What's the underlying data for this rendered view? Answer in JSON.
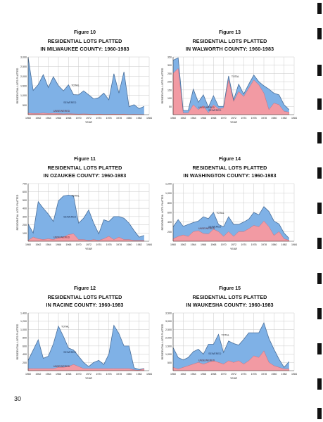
{
  "page_number": "30",
  "binder_tabs": [
    4,
    40,
    92,
    140,
    188,
    238,
    288,
    338,
    388,
    438,
    488,
    538,
    580
  ],
  "colors": {
    "sewered": "#7fb1e6",
    "unsewered": "#f29aa3",
    "grid": "#c9c9c9",
    "line": "#4a6f9a"
  },
  "charts": [
    {
      "figure": "Figure 10",
      "title_line1": "RESIDENTIAL LOTS PLATTED",
      "title_line2": "IN MILWAUKEE COUNTY: 1960-1983",
      "ylabel": "RESIDENTIAL LOTS PLATTED",
      "xlabel": "YEAR",
      "y_ticks": [
        "500",
        "1,000",
        "1,500",
        "2,000",
        "2,500",
        "3,000"
      ],
      "ann_total": "TOTAL",
      "ann_sewered": "SEWERED",
      "ann_unsewered": "UNSEWERED"
    },
    {
      "figure": "Figure 13",
      "title_line1": "RESIDENTIAL LOTS PLATTED",
      "title_line2": "IN WALWORTH COUNTY: 1960-1983",
      "ylabel": "RESIDENTIAL LOTS PLATTED",
      "xlabel": "YEAR",
      "y_ticks": [
        "50",
        "100",
        "150",
        "200",
        "250",
        "300",
        "350"
      ],
      "ann_total": "TOTAL",
      "ann_sewered": "SEWERED",
      "ann_unsewered": "UNSEWERED"
    },
    {
      "figure": "Figure 11",
      "title_line1": "RESIDENTIAL LOTS PLATTED",
      "title_line2": "IN OZAUKEE COUNTY: 1960-1983",
      "ylabel": "RESIDENTIAL LOTS PLATTED",
      "xlabel": "YEAR",
      "y_ticks": [
        "100",
        "200",
        "300",
        "400",
        "500",
        "600",
        "700"
      ],
      "ann_total": "TOTAL",
      "ann_sewered": "SEWERED",
      "ann_unsewered": "UNSEWERED"
    },
    {
      "figure": "Figure 14",
      "title_line1": "RESIDENTIAL LOTS PLATTED",
      "title_line2": "IN WASHINGTON COUNTY: 1960-1983",
      "ylabel": "RESIDENTIAL LOTS PLATTED",
      "xlabel": "YEAR",
      "y_ticks": [
        "200",
        "400",
        "600",
        "800",
        "1,000",
        "1,200"
      ],
      "ann_total": "TOTAL",
      "ann_sewered": "SEWERED",
      "ann_unsewered": "UNSEWERED"
    },
    {
      "figure": "Figure 12",
      "title_line1": "RESIDENTIAL LOTS PLATTED",
      "title_line2": "IN RACINE COUNTY: 1960-1983",
      "ylabel": "RESIDENTIAL LOTS PLATTED",
      "xlabel": "YEAR",
      "y_ticks": [
        "200",
        "400",
        "600",
        "800",
        "1,000",
        "1,200",
        "1,400"
      ],
      "ann_total": "TOTAL",
      "ann_sewered": "SEWERED",
      "ann_unsewered": "UNSEWERED"
    },
    {
      "figure": "Figure 15",
      "title_line1": "RESIDENTIAL LOTS PLATTED",
      "title_line2": "IN WAUKESHA COUNTY: 1960-1983",
      "ylabel": "RESIDENTIAL LOTS PLATTED",
      "xlabel": "YEAR",
      "y_ticks": [
        "500",
        "1,000",
        "1,500",
        "2,000",
        "2,500",
        "3,000",
        "3,500"
      ],
      "ann_total": "TOTAL",
      "ann_sewered": "SEWERED",
      "ann_unsewered": "UNSEWERED"
    }
  ],
  "chart_data": [
    {
      "type": "area",
      "x": [
        1960,
        1961,
        1962,
        1963,
        1964,
        1965,
        1966,
        1967,
        1968,
        1969,
        1970,
        1971,
        1972,
        1973,
        1974,
        1975,
        1976,
        1977,
        1978,
        1979,
        1980,
        1981,
        1982,
        1983
      ],
      "x_ticks": [
        1960,
        1962,
        1964,
        1966,
        1968,
        1970,
        1972,
        1974,
        1976,
        1978,
        1980,
        1982,
        1984
      ],
      "x_ticks_text": [
        "1960",
        "1962",
        "1964",
        "1966",
        "1968",
        "1970",
        "1972",
        "1974",
        "1976",
        "1978",
        "1980",
        "1982",
        "1984"
      ],
      "ylim": [
        0,
        3000
      ],
      "y_tick_values": [
        500,
        1000,
        1500,
        2000,
        2500,
        3000
      ],
      "grid": true,
      "series": [
        {
          "name": "SEWERED",
          "values": [
            2900,
            1200,
            1500,
            2000,
            1350,
            1900,
            1450,
            1200,
            1500,
            1000,
            1000,
            1200,
            1000,
            800,
            850,
            1100,
            750,
            2100,
            1100,
            2200,
            400,
            500,
            300,
            420
          ]
        },
        {
          "name": "UNSEWERED",
          "values": [
            80,
            60,
            60,
            80,
            60,
            70,
            60,
            40,
            50,
            40,
            30,
            40,
            30,
            20,
            30,
            20,
            20,
            30,
            20,
            30,
            10,
            20,
            10,
            10
          ]
        }
      ]
    },
    {
      "type": "area",
      "x": [
        1960,
        1961,
        1962,
        1963,
        1964,
        1965,
        1966,
        1967,
        1968,
        1969,
        1970,
        1971,
        1972,
        1973,
        1974,
        1975,
        1976,
        1977,
        1978,
        1979,
        1980,
        1981,
        1982,
        1983
      ],
      "x_ticks": [
        1960,
        1962,
        1964,
        1966,
        1968,
        1970,
        1972,
        1974,
        1976,
        1978,
        1980,
        1982,
        1984
      ],
      "x_ticks_text": [
        "1960",
        "1962",
        "1964",
        "1966",
        "1968",
        "1970",
        "1972",
        "1974",
        "1976",
        "1978",
        "1980",
        "1982",
        "1984"
      ],
      "ylim": [
        0,
        350
      ],
      "y_tick_values": [
        50,
        100,
        150,
        200,
        250,
        300,
        350
      ],
      "grid": true,
      "series": [
        {
          "name": "SEWERED",
          "values": [
            80,
            65,
            15,
            15,
            95,
            45,
            65,
            35,
            55,
            15,
            10,
            25,
            10,
            45,
            15,
            25,
            30,
            20,
            45,
            125,
            60,
            60,
            40,
            15
          ]
        },
        {
          "name": "UNSEWERED",
          "values": [
            250,
            280,
            10,
            10,
            60,
            30,
            55,
            10,
            60,
            35,
            40,
            210,
            80,
            140,
            110,
            160,
            210,
            180,
            130,
            30,
            70,
            60,
            20,
            15
          ]
        }
      ]
    },
    {
      "type": "area",
      "x": [
        1960,
        1961,
        1962,
        1963,
        1964,
        1965,
        1966,
        1967,
        1968,
        1969,
        1970,
        1971,
        1972,
        1973,
        1974,
        1975,
        1976,
        1977,
        1978,
        1979,
        1980,
        1981,
        1982,
        1983
      ],
      "x_ticks": [
        1960,
        1962,
        1964,
        1966,
        1968,
        1970,
        1972,
        1974,
        1976,
        1978,
        1980,
        1982,
        1984
      ],
      "x_ticks_text": [
        "1960",
        "1962",
        "1964",
        "1966",
        "1968",
        "1970",
        "1972",
        "1974",
        "1976",
        "1978",
        "1980",
        "1982",
        "1984"
      ],
      "ylim": [
        0,
        700
      ],
      "y_tick_values": [
        100,
        200,
        300,
        400,
        500,
        600,
        700
      ],
      "grid": true,
      "series": [
        {
          "name": "SEWERED",
          "values": [
            200,
            50,
            450,
            380,
            300,
            220,
            450,
            500,
            480,
            460,
            200,
            260,
            370,
            200,
            80,
            230,
            180,
            280,
            250,
            260,
            200,
            120,
            40,
            60
          ]
        },
        {
          "name": "UNSEWERED",
          "values": [
            10,
            50,
            30,
            20,
            30,
            20,
            40,
            50,
            80,
            90,
            20,
            20,
            10,
            20,
            10,
            30,
            60,
            20,
            50,
            20,
            20,
            10,
            10,
            10
          ]
        }
      ]
    },
    {
      "type": "area",
      "x": [
        1960,
        1961,
        1962,
        1963,
        1964,
        1965,
        1966,
        1967,
        1968,
        1969,
        1970,
        1971,
        1972,
        1973,
        1974,
        1975,
        1976,
        1977,
        1978,
        1979,
        1980,
        1981,
        1982,
        1983
      ],
      "x_ticks": [
        1960,
        1962,
        1964,
        1966,
        1968,
        1970,
        1972,
        1974,
        1976,
        1978,
        1980,
        1982,
        1984
      ],
      "x_ticks_text": [
        "1960",
        "1962",
        "1964",
        "1966",
        "1968",
        "1970",
        "1972",
        "1974",
        "1976",
        "1978",
        "1980",
        "1982",
        "1984"
      ],
      "ylim": [
        0,
        1200
      ],
      "y_tick_values": [
        200,
        400,
        600,
        800,
        1000,
        1200
      ],
      "grid": true,
      "series": [
        {
          "name": "SEWERED",
          "values": [
            250,
            350,
            180,
            250,
            190,
            200,
            350,
            320,
            350,
            150,
            200,
            310,
            250,
            150,
            200,
            200,
            270,
            250,
            300,
            320,
            300,
            160,
            120,
            40
          ]
        },
        {
          "name": "UNSEWERED",
          "values": [
            50,
            100,
            130,
            100,
            200,
            220,
            160,
            150,
            250,
            200,
            100,
            200,
            100,
            200,
            200,
            260,
            330,
            300,
            420,
            300,
            120,
            200,
            50,
            20
          ]
        }
      ]
    },
    {
      "type": "area",
      "x": [
        1960,
        1961,
        1962,
        1963,
        1964,
        1965,
        1966,
        1967,
        1968,
        1969,
        1970,
        1971,
        1972,
        1973,
        1974,
        1975,
        1976,
        1977,
        1978,
        1979,
        1980,
        1981,
        1982,
        1983
      ],
      "x_ticks": [
        1960,
        1962,
        1964,
        1966,
        1968,
        1970,
        1972,
        1974,
        1976,
        1978,
        1980,
        1982,
        1984
      ],
      "x_ticks_text": [
        "1960",
        "1962",
        "1964",
        "1966",
        "1968",
        "1970",
        "1972",
        "1974",
        "1976",
        "1978",
        "1980",
        "1982",
        "1984"
      ],
      "ylim": [
        0,
        1400
      ],
      "y_tick_values": [
        200,
        400,
        600,
        800,
        1000,
        1200,
        1400
      ],
      "grid": true,
      "series": [
        {
          "name": "SEWERED",
          "values": [
            200,
            450,
            700,
            250,
            300,
            600,
            1000,
            750,
            450,
            350,
            250,
            150,
            50,
            150,
            200,
            100,
            350,
            1050,
            850,
            550,
            550,
            50,
            20,
            0
          ]
        },
        {
          "name": "UNSEWERED",
          "values": [
            50,
            50,
            50,
            50,
            50,
            50,
            80,
            80,
            100,
            150,
            100,
            50,
            50,
            50,
            50,
            50,
            50,
            50,
            50,
            50,
            50,
            20,
            10,
            50
          ]
        }
      ]
    },
    {
      "type": "area",
      "x": [
        1960,
        1961,
        1962,
        1963,
        1964,
        1965,
        1966,
        1967,
        1968,
        1969,
        1970,
        1971,
        1972,
        1973,
        1974,
        1975,
        1976,
        1977,
        1978,
        1979,
        1980,
        1981,
        1982,
        1983
      ],
      "x_ticks": [
        1960,
        1962,
        1964,
        1966,
        1968,
        1970,
        1972,
        1974,
        1976,
        1978,
        1980,
        1982,
        1984
      ],
      "x_ticks_text": [
        "1960",
        "1962",
        "1964",
        "1966",
        "1968",
        "1970",
        "1972",
        "1974",
        "1976",
        "1978",
        "1980",
        "1982",
        "1984"
      ],
      "ylim": [
        0,
        3500
      ],
      "y_tick_values": [
        500,
        1000,
        1500,
        2000,
        2500,
        3000,
        3500
      ],
      "grid": true,
      "series": [
        {
          "name": "SEWERED",
          "values": [
            1200,
            700,
            450,
            500,
            750,
            800,
            600,
            1100,
            1000,
            1700,
            700,
            1200,
            1150,
            950,
            1500,
            1700,
            1400,
            1500,
            1700,
            1450,
            1000,
            500,
            100,
            450
          ]
        },
        {
          "name": "UNSEWERED",
          "values": [
            200,
            100,
            200,
            300,
            400,
            500,
            400,
            500,
            600,
            500,
            400,
            600,
            500,
            600,
            400,
            600,
            900,
            800,
            1200,
            500,
            300,
            200,
            100,
            100
          ]
        }
      ]
    }
  ]
}
